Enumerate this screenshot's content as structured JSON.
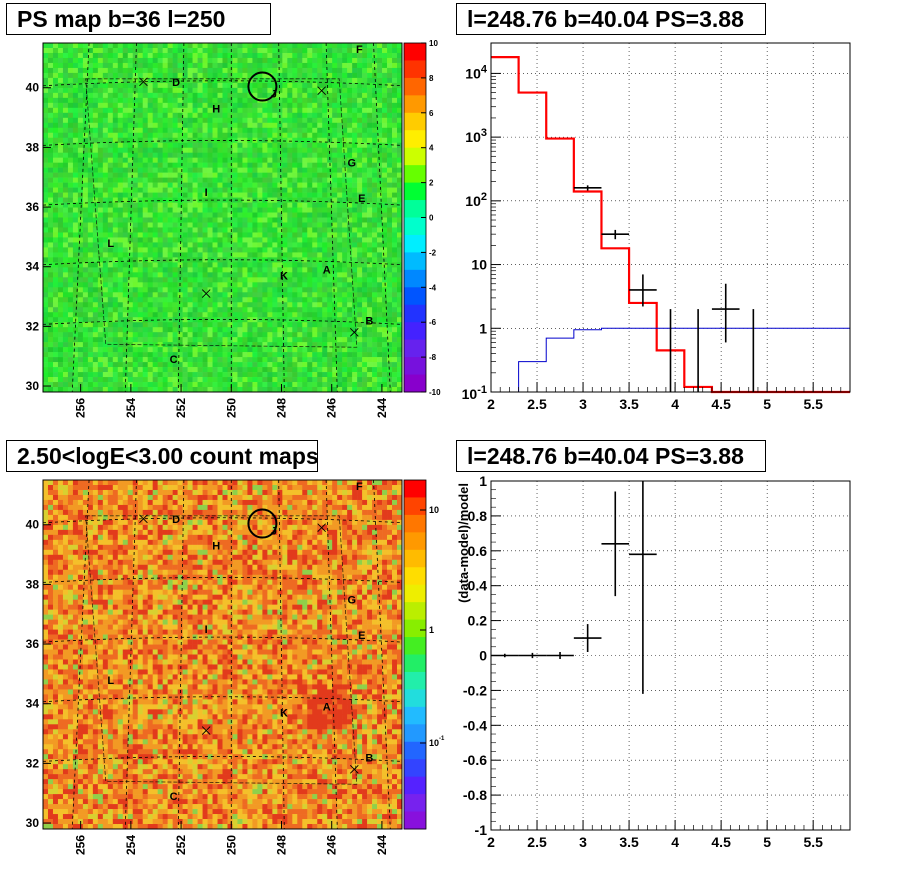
{
  "panels": {
    "top_left_title": "PS map b=36 l=250",
    "top_right_title": "l=248.76 b=40.04 PS=3.88",
    "bottom_left_title": "2.50<logE<3.00 count maps",
    "bottom_right_title": "l=248.76 b=40.04 PS=3.88"
  },
  "colors": {
    "model_red": "#ff0000",
    "model_blue": "#0000cc",
    "data_black": "#000000",
    "ps_map_fill": "#22e022",
    "count_map_fill": "#f2a020"
  },
  "chart_data": [
    {
      "type": "heatmap",
      "title": "PS map b=36 l=250",
      "xlabel": "",
      "ylabel": "",
      "x_ticks": [
        "256",
        "254",
        "252",
        "250",
        "248",
        "246",
        "244"
      ],
      "y_ticks": [
        "30",
        "32",
        "34",
        "36",
        "38",
        "40"
      ],
      "xlim": [
        257.5,
        243.2
      ],
      "ylim": [
        29.8,
        41.5
      ],
      "colorbar": {
        "ticks": [
          "10",
          "8",
          "6",
          "4",
          "2",
          "0",
          "-2",
          "-4",
          "-6",
          "-8",
          "-10"
        ],
        "range": [
          -10,
          10
        ]
      },
      "source_labels": [
        {
          "label": "F",
          "l": 244.9,
          "b": 41.3
        },
        {
          "label": "D",
          "l": 252.2,
          "b": 40.2
        },
        {
          "label": "J",
          "l": 248.3,
          "b": 39.8
        },
        {
          "label": "H",
          "l": 250.6,
          "b": 39.3
        },
        {
          "label": "G",
          "l": 245.2,
          "b": 37.5
        },
        {
          "label": "I",
          "l": 251.0,
          "b": 36.5
        },
        {
          "label": "E",
          "l": 244.8,
          "b": 36.3
        },
        {
          "label": "L",
          "l": 254.8,
          "b": 34.8
        },
        {
          "label": "K",
          "l": 247.9,
          "b": 33.7
        },
        {
          "label": "A",
          "l": 246.2,
          "b": 33.9
        },
        {
          "label": "B",
          "l": 244.5,
          "b": 32.2
        },
        {
          "label": "C",
          "l": 252.3,
          "b": 30.9
        }
      ],
      "markers": [
        {
          "l": 253.5,
          "b": 40.2
        },
        {
          "l": 246.4,
          "b": 39.9
        },
        {
          "l": 251.0,
          "b": 33.1
        },
        {
          "l": 245.1,
          "b": 31.8
        }
      ],
      "circle": {
        "l": 248.76,
        "b": 40.04
      }
    },
    {
      "type": "line",
      "title": "l=248.76 b=40.04 PS=3.88",
      "xlabel": "",
      "ylabel": "",
      "xlim": [
        2.0,
        5.9
      ],
      "ylim": [
        0.1,
        30000
      ],
      "y_scale": "log",
      "x_ticks": [
        "2",
        "2.5",
        "3",
        "3.5",
        "4",
        "4.5",
        "5",
        "5.5"
      ],
      "y_ticks": [
        "10^{-1}",
        "1",
        "10",
        "10^{2}",
        "10^{3}",
        "10^{4}"
      ],
      "grid": true,
      "series": [
        {
          "style": "histogram-red",
          "edges": [
            2.0,
            2.3,
            2.6,
            2.9,
            3.2,
            3.5,
            3.8,
            4.1,
            4.4,
            5.9
          ],
          "values": [
            18000,
            5000,
            950,
            140,
            18,
            2.5,
            0.45,
            0.12,
            0.1
          ]
        },
        {
          "style": "histogram-blue",
          "edges": [
            2.3,
            2.6,
            2.9,
            3.2,
            5.9
          ],
          "values": [
            0.3,
            0.7,
            0.95,
            1.0
          ]
        },
        {
          "style": "data-points",
          "points": [
            {
              "x": 3.05,
              "y": 160,
              "xerr": 0.15,
              "ylo": 145,
              "yhi": 175
            },
            {
              "x": 3.35,
              "y": 30,
              "xerr": 0.15,
              "ylo": 25,
              "yhi": 35
            },
            {
              "x": 3.65,
              "y": 4,
              "xerr": 0.15,
              "ylo": 2.2,
              "yhi": 7
            },
            {
              "x": 3.95,
              "y": 0.1,
              "xerr": 0.0,
              "ylo": 0.1,
              "yhi": 2
            },
            {
              "x": 4.25,
              "y": 0.1,
              "xerr": 0.0,
              "ylo": 0.1,
              "yhi": 2
            },
            {
              "x": 4.55,
              "y": 2,
              "xerr": 0.15,
              "ylo": 0.6,
              "yhi": 5
            },
            {
              "x": 4.85,
              "y": 0.1,
              "xerr": 0.0,
              "ylo": 0.1,
              "yhi": 2
            }
          ]
        }
      ]
    },
    {
      "type": "heatmap",
      "title": "2.50<logE<3.00 count maps",
      "xlabel": "",
      "ylabel": "",
      "x_ticks": [
        "256",
        "254",
        "252",
        "250",
        "248",
        "246",
        "244"
      ],
      "y_ticks": [
        "30",
        "32",
        "34",
        "36",
        "38",
        "40"
      ],
      "xlim": [
        257.5,
        243.2
      ],
      "ylim": [
        29.8,
        41.5
      ],
      "colorbar": {
        "ticks": [
          "10",
          "1",
          "10^{-1}"
        ],
        "scale": "log"
      },
      "source_labels": [
        {
          "label": "F",
          "l": 244.9,
          "b": 41.3
        },
        {
          "label": "D",
          "l": 252.2,
          "b": 40.2
        },
        {
          "label": "J",
          "l": 248.3,
          "b": 39.8
        },
        {
          "label": "H",
          "l": 250.6,
          "b": 39.3
        },
        {
          "label": "G",
          "l": 245.2,
          "b": 37.5
        },
        {
          "label": "I",
          "l": 251.0,
          "b": 36.5
        },
        {
          "label": "E",
          "l": 244.8,
          "b": 36.3
        },
        {
          "label": "L",
          "l": 254.8,
          "b": 34.8
        },
        {
          "label": "K",
          "l": 247.9,
          "b": 33.7
        },
        {
          "label": "A",
          "l": 246.2,
          "b": 33.9
        },
        {
          "label": "B",
          "l": 244.5,
          "b": 32.2
        },
        {
          "label": "C",
          "l": 252.3,
          "b": 30.9
        }
      ],
      "markers": [
        {
          "l": 253.5,
          "b": 40.2
        },
        {
          "l": 246.4,
          "b": 39.9
        },
        {
          "l": 251.0,
          "b": 33.1
        },
        {
          "l": 245.1,
          "b": 31.8
        }
      ],
      "circle": {
        "l": 248.76,
        "b": 40.04
      }
    },
    {
      "type": "scatter",
      "title": "l=248.76 b=40.04 PS=3.88",
      "xlabel": "",
      "ylabel": "(data-model)/model",
      "xlim": [
        2.0,
        5.9
      ],
      "ylim": [
        -1.0,
        1.0
      ],
      "x_ticks": [
        "2",
        "2.5",
        "3",
        "3.5",
        "4",
        "4.5",
        "5",
        "5.5"
      ],
      "y_ticks": [
        "-1",
        "-0.8",
        "-0.6",
        "-0.4",
        "-0.2",
        "0",
        "0.2",
        "0.4",
        "0.6",
        "0.8",
        "1"
      ],
      "grid": true,
      "points": [
        {
          "x": 2.15,
          "y": 0.0,
          "xerr": 0.15,
          "ylo": -0.01,
          "yhi": 0.01
        },
        {
          "x": 2.45,
          "y": 0.0,
          "xerr": 0.15,
          "ylo": -0.015,
          "yhi": 0.015
        },
        {
          "x": 2.75,
          "y": 0.0,
          "xerr": 0.15,
          "ylo": -0.02,
          "yhi": 0.02
        },
        {
          "x": 3.05,
          "y": 0.1,
          "xerr": 0.15,
          "ylo": 0.02,
          "yhi": 0.18
        },
        {
          "x": 3.35,
          "y": 0.64,
          "xerr": 0.15,
          "ylo": 0.34,
          "yhi": 0.94
        },
        {
          "x": 3.65,
          "y": 0.58,
          "xerr": 0.15,
          "ylo": -0.22,
          "yhi": 1.0
        }
      ]
    }
  ]
}
